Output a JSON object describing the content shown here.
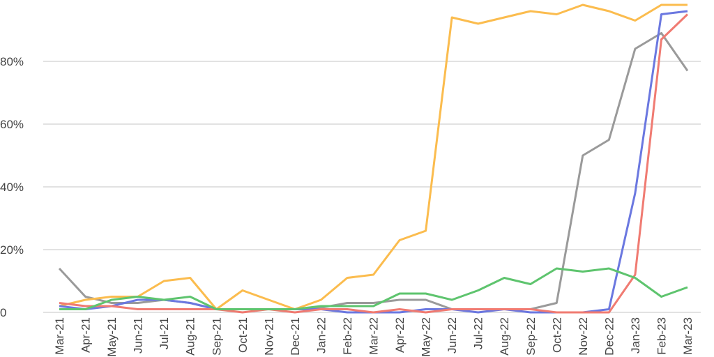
{
  "chart_data": {
    "type": "line",
    "title": "",
    "xlabel": "",
    "ylabel": "",
    "ylim": [
      0,
      100
    ],
    "grid": true,
    "y_ticks": [
      {
        "value": 0,
        "label": "0"
      },
      {
        "value": 20,
        "label": "20%"
      },
      {
        "value": 40,
        "label": "40%"
      },
      {
        "value": 60,
        "label": "60%"
      },
      {
        "value": 80,
        "label": "80%"
      }
    ],
    "categories": [
      "Mar-21",
      "Apr-21",
      "May-21",
      "Jun-21",
      "Jul-21",
      "Aug-21",
      "Sep-21",
      "Oct-21",
      "Nov-21",
      "Dec-21",
      "Jan-22",
      "Feb-22",
      "Mar-22",
      "Apr-22",
      "May-22",
      "Jun-22",
      "Jul-22",
      "Aug-22",
      "Sep-22",
      "Oct-22",
      "Nov-22",
      "Dec-22",
      "Jan-23",
      "Feb-23",
      "Mar-23"
    ],
    "series": [
      {
        "color": "#9a9a9a",
        "values": [
          14,
          5,
          3,
          3,
          4,
          3,
          1,
          1,
          1,
          1,
          1.5,
          3,
          3,
          4,
          4,
          1,
          1,
          1,
          1,
          3,
          50,
          55,
          84,
          89,
          77
        ]
      },
      {
        "color": "#fbbc4e",
        "values": [
          2,
          4,
          5,
          5,
          10,
          11,
          1,
          7,
          4,
          1,
          4,
          11,
          12,
          23,
          26,
          94,
          92,
          94,
          96,
          95,
          98,
          96,
          93,
          98,
          98
        ]
      },
      {
        "color": "#6b78e0",
        "values": [
          2,
          1,
          2,
          4,
          4,
          3,
          1,
          1,
          1,
          1,
          1,
          0,
          0,
          0,
          1,
          1,
          0,
          1,
          0,
          0,
          0,
          1,
          38,
          95,
          96
        ]
      },
      {
        "color": "#f07b72",
        "values": [
          3,
          2,
          2,
          1,
          1,
          1,
          1,
          0,
          1,
          0,
          1,
          1,
          0,
          1,
          0,
          1,
          1,
          1,
          1,
          0,
          0,
          0,
          12,
          87,
          95
        ]
      },
      {
        "color": "#5ec46e",
        "values": [
          1,
          1,
          4,
          5,
          4,
          5,
          1,
          1,
          1,
          1,
          2,
          2,
          2,
          6,
          6,
          4,
          7,
          11,
          9,
          14,
          13,
          14,
          11,
          5,
          8
        ]
      }
    ]
  }
}
